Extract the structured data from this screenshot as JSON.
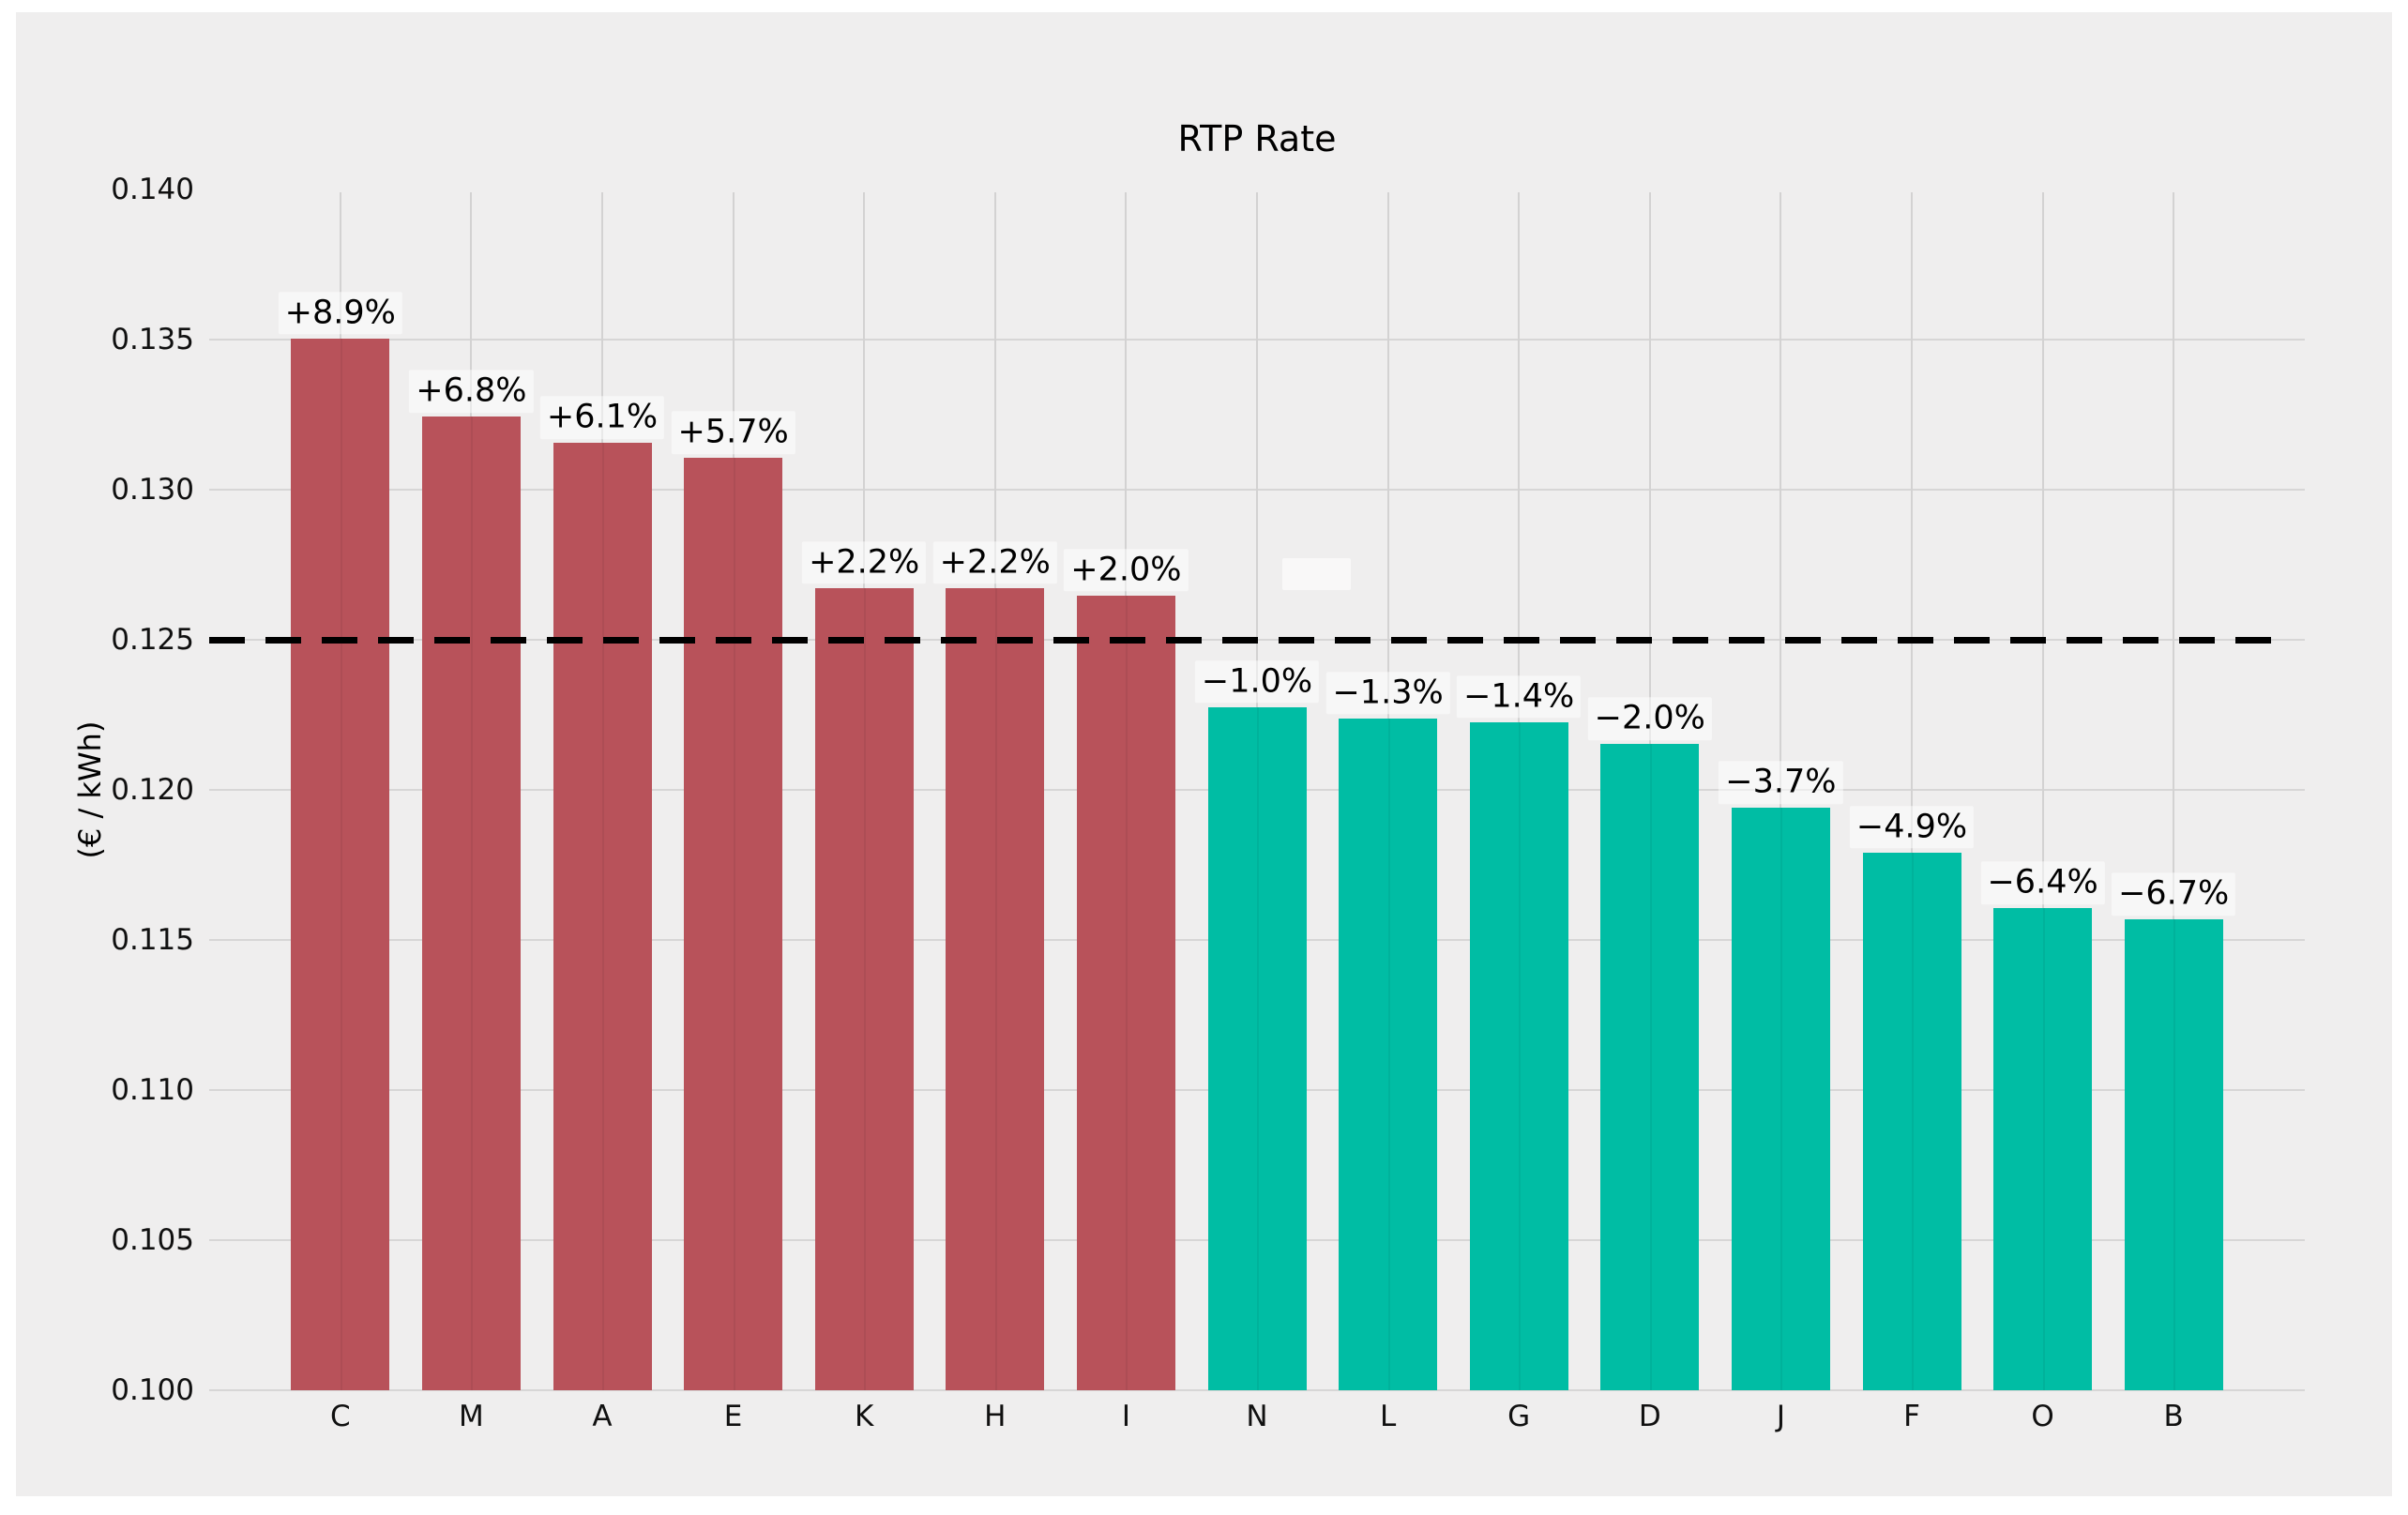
{
  "title": "RTP Rate",
  "y_axis_title": "(€ / kWh)",
  "colors": {
    "positive_bar": "#b8525a",
    "negative_bar": "#00bda4",
    "canvas_background": "#efeeee",
    "page_background": "#ffffff",
    "gridline": "#d5d4d4",
    "baseline_dash": "#000000",
    "label_background": "rgba(255,255,255,0.5)"
  },
  "chart_data": {
    "type": "bar",
    "title": "RTP Rate",
    "xlabel": "",
    "ylabel": "(€ / kWh)",
    "categories": [
      "C",
      "M",
      "A",
      "E",
      "K",
      "H",
      "I",
      "N",
      "L",
      "G",
      "D",
      "J",
      "F",
      "O",
      "B"
    ],
    "values": [
      0.13504,
      0.13243,
      0.13156,
      0.13107,
      0.12673,
      0.12673,
      0.12648,
      0.12276,
      0.12239,
      0.12226,
      0.12152,
      0.11941,
      0.11792,
      0.11606,
      0.11569
    ],
    "bar_labels": [
      "+8.9%",
      "+6.8%",
      "+6.1%",
      "+5.7%",
      "+2.2%",
      "+2.2%",
      "+2.0%",
      "−1.0%",
      "−1.3%",
      "−1.4%",
      "−2.0%",
      "−3.7%",
      "−4.9%",
      "−6.4%",
      "−6.7%"
    ],
    "bar_signs": [
      "pos",
      "pos",
      "pos",
      "pos",
      "pos",
      "pos",
      "pos",
      "neg",
      "neg",
      "neg",
      "neg",
      "neg",
      "neg",
      "neg",
      "neg"
    ],
    "baseline_value": 0.125,
    "ylim": [
      0.1,
      0.14
    ],
    "ytick_labels": [
      "0.100",
      "0.105",
      "0.110",
      "0.115",
      "0.120",
      "0.125",
      "0.130",
      "0.135",
      "0.140"
    ],
    "ytick_values": [
      0.1,
      0.105,
      0.11,
      0.115,
      0.12,
      0.125,
      0.13,
      0.135,
      0.14
    ],
    "grid": true,
    "legend": "none"
  }
}
